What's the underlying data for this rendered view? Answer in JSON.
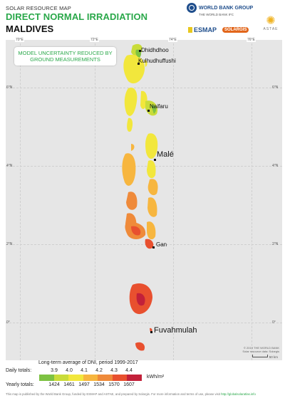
{
  "header": {
    "small_title": "SOLAR RESOURCE MAP",
    "title": "DIRECT NORMAL IRRADIATION",
    "country": "MALDIVES"
  },
  "logos": {
    "world_bank": "WORLD BANK GROUP",
    "world_bank_sub": "THE WORLD BANK   IFC",
    "esmap": "ESMAP",
    "solargis": "SOLARGIS",
    "astak": "ASTAE"
  },
  "map": {
    "note": "MODEL UNCERTAINTY REDUCED BY GROUND MEASUREMENTS",
    "lon_ticks": [
      "70°E",
      "72°E",
      "74°E",
      "76°E"
    ],
    "lat_ticks": [
      "6°N",
      "4°N",
      "2°N",
      "0°"
    ],
    "places": {
      "dhidhdhoo": "Dhidhdhoo",
      "kulhudhuffushi": "Kulhudhuffushi",
      "naifaru": "Naifaru",
      "male": "Malé",
      "gan": "Gan",
      "fuvahmulah": "Fuvahmulah"
    },
    "copyright": "© 2019 THE WORLD BANK",
    "copyright_sub": "Solar resource data: Solargis",
    "scale": "50 km"
  },
  "legend": {
    "title": "Long-term average of DNI, period 1999-2017",
    "daily_label": "Daily totals:",
    "yearly_label": "Yearly totals:",
    "unit": "kWh/m²",
    "daily": [
      "3.9",
      "4.0",
      "4.1",
      "4.2",
      "4.3",
      "4.4"
    ],
    "yearly": [
      "1424",
      "1461",
      "1497",
      "1534",
      "1570",
      "1607"
    ],
    "colors": [
      "#7dc242",
      "#c9dc3a",
      "#f2e73c",
      "#f7b63f",
      "#ef8a3a",
      "#e8502f",
      "#c2203a",
      "#9c1040"
    ]
  },
  "footer": {
    "text": "This map is published by the World Bank Group, funded by ESMAP and ASTAE, and prepared by Solargis. For more information and terms of use, please visit",
    "link": "http://globalsolaratlas.info"
  }
}
